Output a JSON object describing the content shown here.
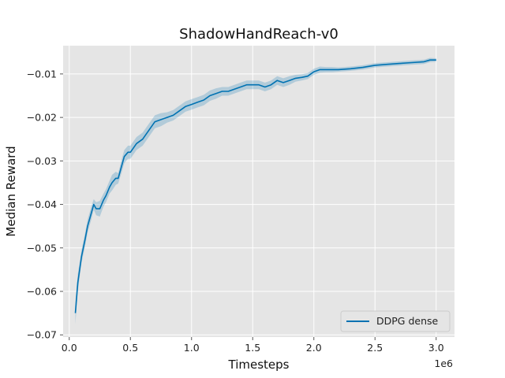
{
  "chart_data": {
    "type": "line",
    "title": "ShadowHandReach-v0",
    "xlabel": "Timesteps",
    "ylabel": "Median Reward",
    "x_offset_label": "1e6",
    "xlim": [
      -0.05,
      3.15
    ],
    "ylim": [
      -0.0705,
      -0.0035
    ],
    "x_ticks": [
      0.0,
      0.5,
      1.0,
      1.5,
      2.0,
      2.5,
      3.0
    ],
    "x_tick_labels": [
      "0.0",
      "0.5",
      "1.0",
      "1.5",
      "2.0",
      "2.5",
      "3.0"
    ],
    "y_ticks": [
      -0.07,
      -0.06,
      -0.05,
      -0.04,
      -0.03,
      -0.02,
      -0.01
    ],
    "y_tick_labels": [
      "−0.07",
      "−0.06",
      "−0.05",
      "−0.04",
      "−0.03",
      "−0.02",
      "−0.01"
    ],
    "grid": true,
    "legend_position": "bottom-right",
    "colors": {
      "plot_background": "#e5e5e5",
      "grid": "#ffffff",
      "line": "#0072b2",
      "band": "#0072b2"
    },
    "series": [
      {
        "name": "DDPG dense",
        "x": [
          0.05,
          0.07,
          0.1,
          0.13,
          0.15,
          0.18,
          0.2,
          0.22,
          0.25,
          0.28,
          0.3,
          0.33,
          0.35,
          0.38,
          0.4,
          0.43,
          0.45,
          0.48,
          0.5,
          0.55,
          0.6,
          0.65,
          0.7,
          0.75,
          0.8,
          0.85,
          0.9,
          0.95,
          1.0,
          1.05,
          1.1,
          1.15,
          1.2,
          1.25,
          1.3,
          1.35,
          1.4,
          1.45,
          1.5,
          1.55,
          1.6,
          1.65,
          1.7,
          1.75,
          1.8,
          1.85,
          1.9,
          1.95,
          2.0,
          2.05,
          2.1,
          2.15,
          2.2,
          2.3,
          2.4,
          2.5,
          2.6,
          2.7,
          2.8,
          2.9,
          2.95,
          3.0
        ],
        "values": [
          -0.065,
          -0.058,
          -0.052,
          -0.048,
          -0.045,
          -0.042,
          -0.04,
          -0.041,
          -0.041,
          -0.039,
          -0.038,
          -0.036,
          -0.035,
          -0.034,
          -0.034,
          -0.031,
          -0.029,
          -0.028,
          -0.028,
          -0.026,
          -0.025,
          -0.023,
          -0.021,
          -0.0205,
          -0.02,
          -0.0195,
          -0.0185,
          -0.0175,
          -0.017,
          -0.0165,
          -0.016,
          -0.015,
          -0.0145,
          -0.014,
          -0.014,
          -0.0135,
          -0.013,
          -0.0125,
          -0.0125,
          -0.0125,
          -0.013,
          -0.0125,
          -0.0115,
          -0.012,
          -0.0115,
          -0.011,
          -0.0108,
          -0.0105,
          -0.0095,
          -0.009,
          -0.009,
          -0.009,
          -0.009,
          -0.0088,
          -0.0085,
          -0.008,
          -0.0078,
          -0.0076,
          -0.0074,
          -0.0072,
          -0.0068,
          -0.0068
        ],
        "lower": [
          -0.0675,
          -0.06,
          -0.0535,
          -0.0495,
          -0.0465,
          -0.0435,
          -0.0412,
          -0.0425,
          -0.0428,
          -0.0405,
          -0.0395,
          -0.0375,
          -0.0368,
          -0.0355,
          -0.0352,
          -0.0325,
          -0.0305,
          -0.0295,
          -0.0295,
          -0.0275,
          -0.0265,
          -0.0245,
          -0.0225,
          -0.022,
          -0.0212,
          -0.0207,
          -0.0197,
          -0.0187,
          -0.0182,
          -0.0177,
          -0.0172,
          -0.0162,
          -0.0157,
          -0.015,
          -0.015,
          -0.0145,
          -0.014,
          -0.0135,
          -0.0135,
          -0.0135,
          -0.014,
          -0.0135,
          -0.0125,
          -0.013,
          -0.0125,
          -0.0118,
          -0.0115,
          -0.0112,
          -0.0102,
          -0.0097,
          -0.0096,
          -0.0096,
          -0.0095,
          -0.0093,
          -0.009,
          -0.0085,
          -0.0083,
          -0.0081,
          -0.0079,
          -0.0077,
          -0.0073,
          -0.0072
        ],
        "upper": [
          -0.0625,
          -0.056,
          -0.0505,
          -0.0465,
          -0.0435,
          -0.0405,
          -0.0388,
          -0.0395,
          -0.0392,
          -0.0375,
          -0.0365,
          -0.0345,
          -0.0332,
          -0.0325,
          -0.0328,
          -0.0295,
          -0.0275,
          -0.0265,
          -0.0265,
          -0.0245,
          -0.0235,
          -0.0215,
          -0.0195,
          -0.019,
          -0.0188,
          -0.0183,
          -0.0173,
          -0.0163,
          -0.0158,
          -0.0153,
          -0.0148,
          -0.0138,
          -0.0133,
          -0.013,
          -0.013,
          -0.0125,
          -0.012,
          -0.0115,
          -0.0115,
          -0.0115,
          -0.012,
          -0.0115,
          -0.0105,
          -0.011,
          -0.0105,
          -0.0102,
          -0.0101,
          -0.0098,
          -0.0088,
          -0.0083,
          -0.0084,
          -0.0084,
          -0.0085,
          -0.0083,
          -0.008,
          -0.0075,
          -0.0073,
          -0.0071,
          -0.0069,
          -0.0067,
          -0.0063,
          -0.0064
        ]
      }
    ]
  }
}
